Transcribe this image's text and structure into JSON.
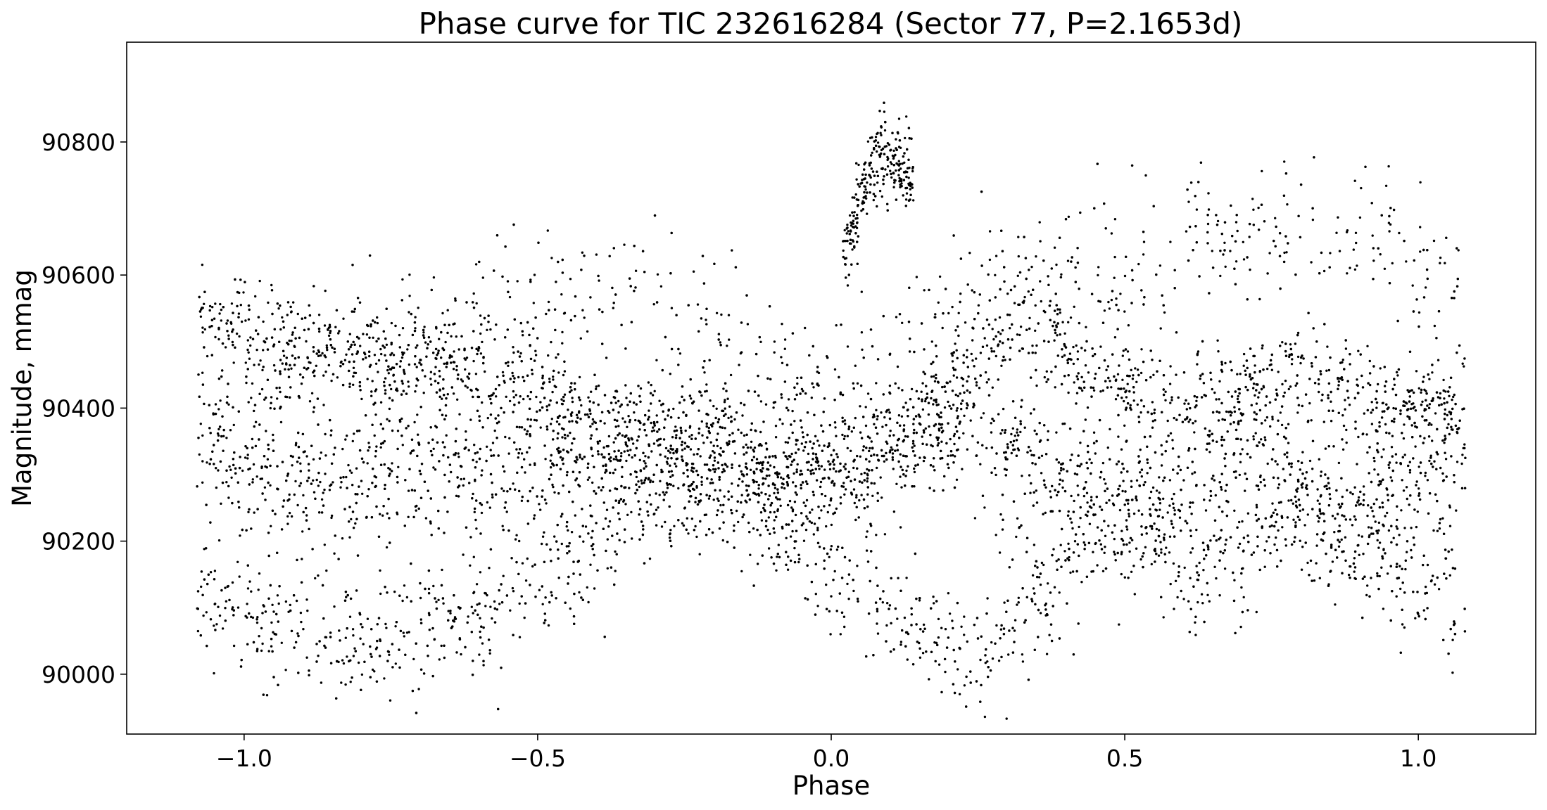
{
  "chart_data": {
    "type": "scatter",
    "title": "Phase curve for TIC 232616284 (Sector 77, P=2.1653d)",
    "xlabel": "Phase",
    "ylabel": "Magnitude, mmag",
    "xlim": [
      -1.2,
      1.2
    ],
    "ylim": [
      89910,
      90950
    ],
    "xticks": [
      -1.0,
      -0.5,
      0.0,
      0.5,
      1.0
    ],
    "xtick_labels": [
      "−1.0",
      "−0.5",
      "0.0",
      "0.5",
      "1.0"
    ],
    "yticks": [
      90000,
      90200,
      90400,
      90600,
      90800
    ],
    "ytick_labels": [
      "90000",
      "90200",
      "90400",
      "90600",
      "90800"
    ],
    "grid": false,
    "marker_color": "#000000",
    "series": [
      {
        "phase_range": [
          -1.08,
          1.08
        ],
        "bands": [
          {
            "x": [
              -1.08,
              -1.0,
              -0.9,
              -0.8,
              -0.7,
              -0.6,
              -0.5,
              -0.4,
              -0.3,
              -0.2,
              -0.1,
              0.0,
              0.1,
              0.2,
              0.25,
              0.3,
              0.4,
              0.5,
              0.6,
              0.7,
              0.8,
              0.9,
              1.0,
              1.08
            ],
            "y": [
              90540,
              90520,
              90500,
              90480,
              90470,
              90460,
              90420,
              90390,
              90360,
              90340,
              90300,
              90290,
              90320,
              90400,
              90500,
              90520,
              90480,
              90440,
              90400,
              90420,
              90450,
              90430,
              90400,
              90390
            ],
            "spread": 40,
            "weight": 0.28
          },
          {
            "x": [
              -1.08,
              -1.0,
              -0.9,
              -0.8,
              -0.7,
              -0.6,
              -0.5,
              -0.4,
              -0.3,
              -0.2,
              -0.1,
              0.0,
              0.1,
              0.2,
              0.3,
              0.4,
              0.5,
              0.6,
              0.7,
              0.8,
              0.9,
              1.0,
              1.08
            ],
            "y": [
              90350,
              90320,
              90280,
              90300,
              90320,
              90310,
              90300,
              90320,
              90330,
              90330,
              90300,
              90330,
              90360,
              90380,
              90330,
              90280,
              90250,
              90280,
              90330,
              90280,
              90250,
              90300,
              90350
            ],
            "spread": 60,
            "weight": 0.34
          },
          {
            "x": [
              -1.08,
              -1.0,
              -0.9,
              -0.8,
              -0.7,
              -0.6,
              -0.5,
              -0.4,
              -0.3,
              -0.2,
              -0.1,
              0.0,
              0.1,
              0.2,
              0.25,
              0.3,
              0.4,
              0.5,
              0.6,
              0.7,
              0.8,
              0.9,
              1.0,
              1.08
            ],
            "y": [
              90120,
              90080,
              90060,
              90050,
              90060,
              90090,
              90120,
              90180,
              90240,
              90270,
              90230,
              90150,
              90100,
              90040,
              90030,
              90060,
              90170,
              90240,
              90150,
              90180,
              90260,
              90180,
              90120,
              90100
            ],
            "spread": 45,
            "weight": 0.22
          },
          {
            "x": [
              -1.0,
              -0.5,
              -0.3,
              0.0,
              0.3,
              0.5,
              0.7,
              0.8,
              0.9,
              1.0,
              1.08
            ],
            "y": [
              90450,
              90560,
              90580,
              90400,
              90600,
              90640,
              90660,
              90680,
              90680,
              90620,
              90560
            ],
            "spread": 55,
            "weight": 0.12
          },
          {
            "x": [
              0.02,
              0.05,
              0.08,
              0.11,
              0.14
            ],
            "y": [
              90620,
              90720,
              90780,
              90780,
              90740
            ],
            "spread": 30,
            "weight": 0.04
          }
        ],
        "n_points": 9000
      }
    ]
  }
}
